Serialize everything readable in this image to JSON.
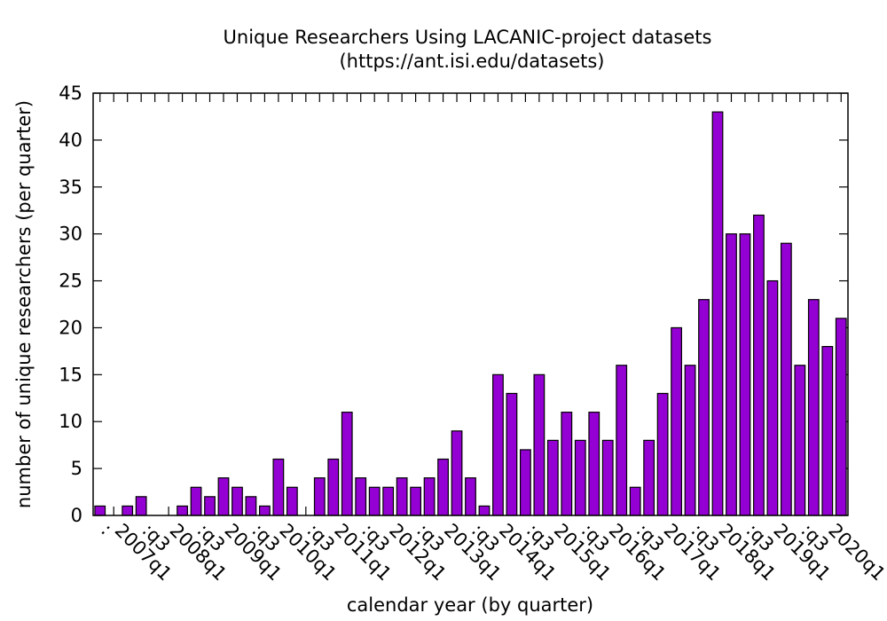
{
  "chart_data": {
    "type": "bar",
    "title": "Unique Researchers Using LACANIC-project datasets",
    "subtitle": "(https://ant.isi.edu/datasets)",
    "xlabel": "calendar year (by quarter)",
    "ylabel": "number of unique researchers (per quarter)",
    "ylim": [
      0,
      45
    ],
    "yticks": [
      0,
      5,
      10,
      15,
      20,
      25,
      30,
      35,
      40,
      45
    ],
    "grid": false,
    "bar_color": "#9400d3",
    "bar_edge_color": "#000000",
    "x_tick_labels": [
      {
        "index": 0,
        "label": ":"
      },
      {
        "index": 1,
        "label": "2007q1"
      },
      {
        "index": 3,
        "label": ":q3"
      },
      {
        "index": 5,
        "label": "2008q1"
      },
      {
        "index": 7,
        "label": ":q3"
      },
      {
        "index": 9,
        "label": "2009q1"
      },
      {
        "index": 11,
        "label": ":q3"
      },
      {
        "index": 13,
        "label": "2010q1"
      },
      {
        "index": 15,
        "label": ":q3"
      },
      {
        "index": 17,
        "label": "2011q1"
      },
      {
        "index": 19,
        "label": ":q3"
      },
      {
        "index": 21,
        "label": "2012q1"
      },
      {
        "index": 23,
        "label": ":q3"
      },
      {
        "index": 25,
        "label": "2013q1"
      },
      {
        "index": 27,
        "label": ":q3"
      },
      {
        "index": 29,
        "label": "2014q1"
      },
      {
        "index": 31,
        "label": ":q3"
      },
      {
        "index": 33,
        "label": "2015q1"
      },
      {
        "index": 35,
        "label": ":q3"
      },
      {
        "index": 37,
        "label": "2016q1"
      },
      {
        "index": 39,
        "label": ":q3"
      },
      {
        "index": 41,
        "label": "2017q1"
      },
      {
        "index": 43,
        "label": ":q3"
      },
      {
        "index": 45,
        "label": "2018q1"
      },
      {
        "index": 47,
        "label": ":q3"
      },
      {
        "index": 49,
        "label": "2019q1"
      },
      {
        "index": 51,
        "label": ":q3"
      },
      {
        "index": 53,
        "label": "2020q1"
      }
    ],
    "values": [
      1,
      0,
      1,
      2,
      0,
      0,
      1,
      3,
      2,
      4,
      3,
      2,
      1,
      6,
      3,
      0,
      4,
      6,
      11,
      4,
      3,
      3,
      4,
      3,
      4,
      6,
      9,
      4,
      1,
      15,
      13,
      7,
      15,
      8,
      11,
      8,
      11,
      8,
      16,
      3,
      8,
      13,
      20,
      16,
      23,
      43,
      30,
      30,
      32,
      25,
      29,
      16,
      23,
      18,
      21
    ]
  }
}
